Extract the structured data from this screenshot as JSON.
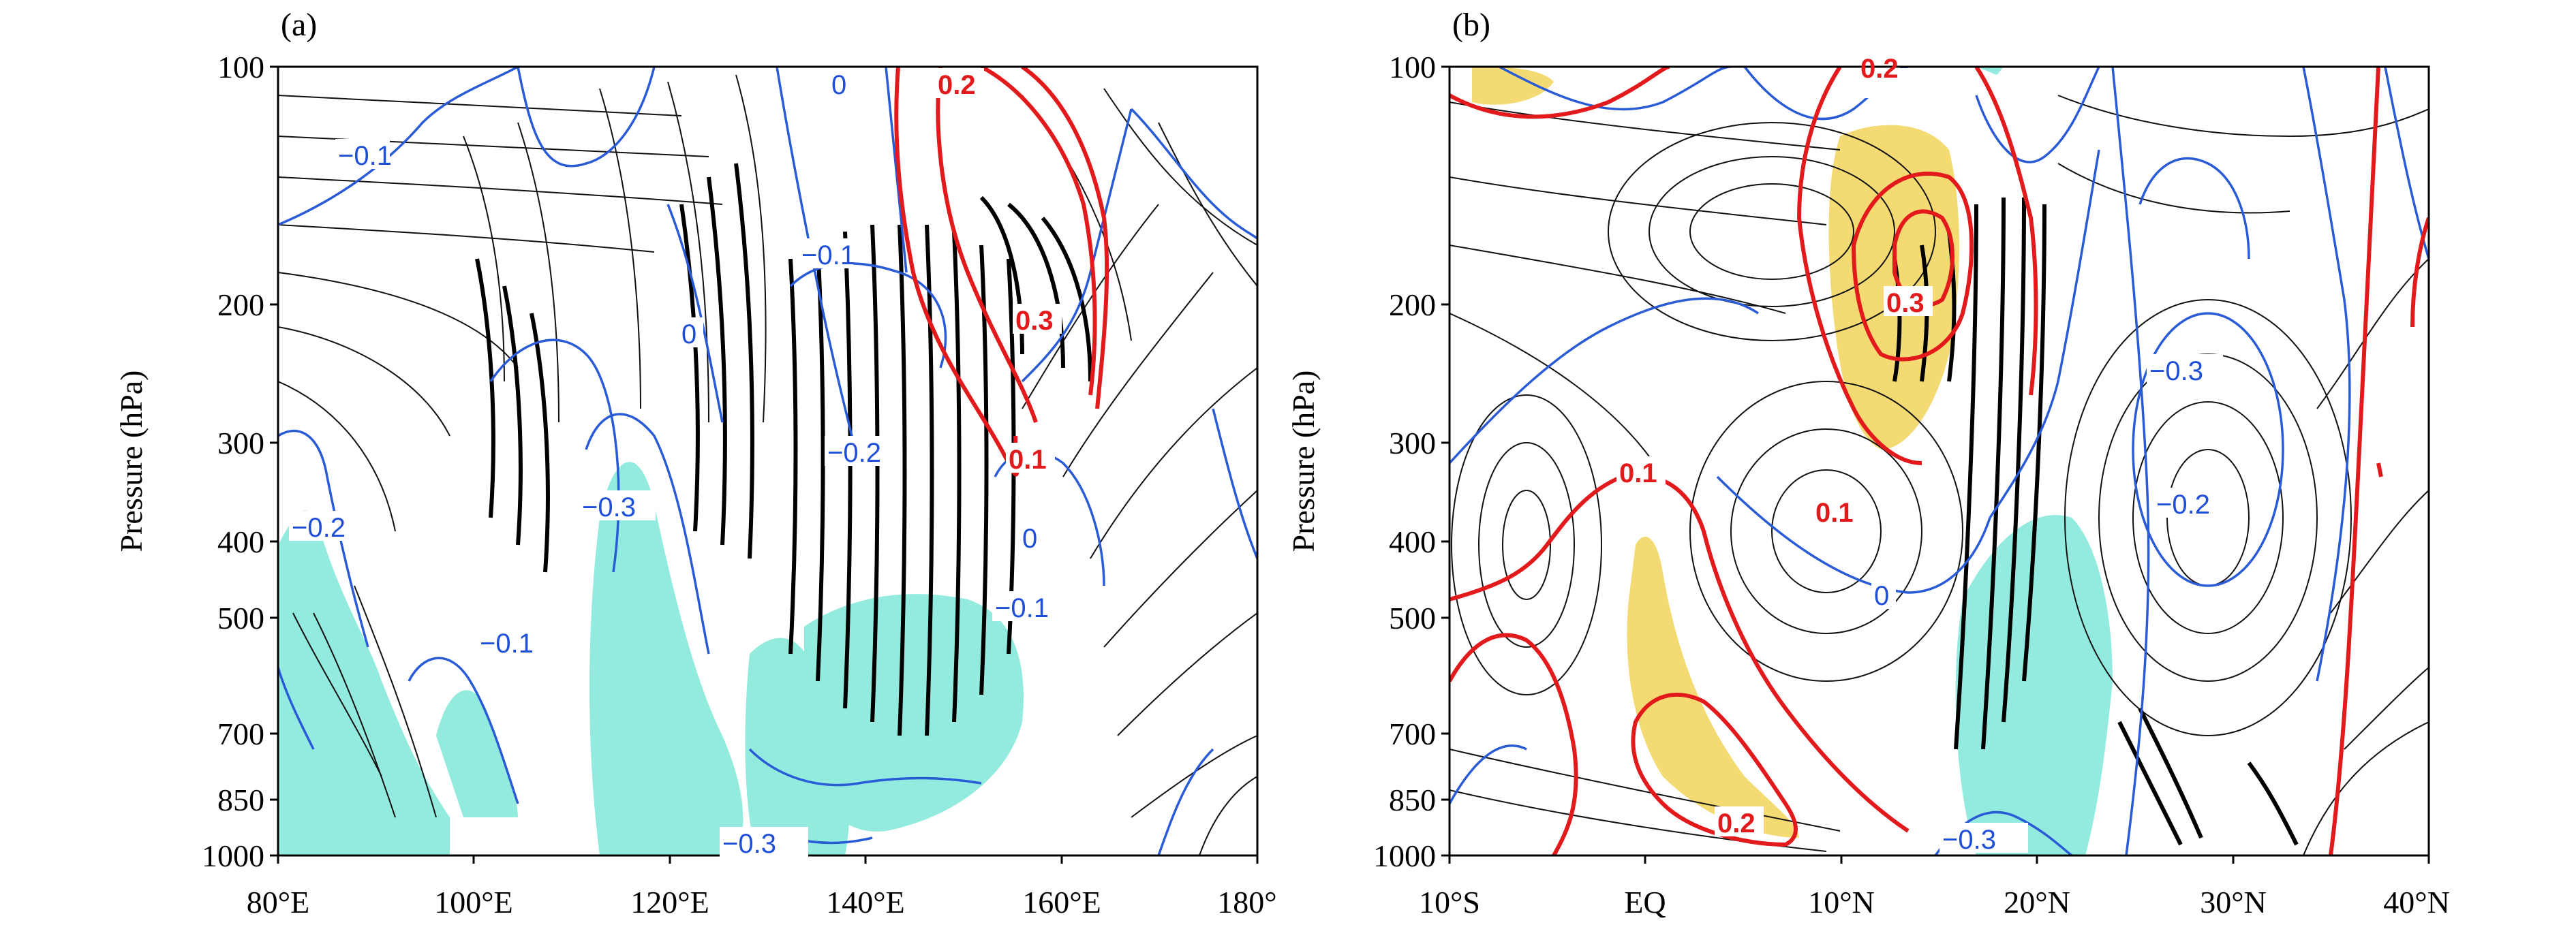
{
  "chart_data": [
    {
      "type": "contour",
      "panel_label": "(a)",
      "ylabel": "Pressure (hPa)",
      "x_ticks": [
        "80°E",
        "100°E",
        "120°E",
        "140°E",
        "160°E",
        "180°"
      ],
      "y_ticks": [
        "100",
        "200",
        "300",
        "400",
        "500",
        "700",
        "850",
        "1000"
      ],
      "y_scale": "log",
      "ylim": [
        1000,
        100
      ],
      "contour_labels": [
        {
          "text": "−0.1",
          "color": "blue"
        },
        {
          "text": "0",
          "color": "blue"
        },
        {
          "text": "0.2",
          "color": "red"
        },
        {
          "text": "−0.1",
          "color": "blue"
        },
        {
          "text": "0.3",
          "color": "red"
        },
        {
          "text": "0",
          "color": "blue"
        },
        {
          "text": "−0.2",
          "color": "blue"
        },
        {
          "text": "0.1",
          "color": "red"
        },
        {
          "text": "−0.2",
          "color": "blue"
        },
        {
          "text": "−0.3",
          "color": "blue"
        },
        {
          "text": "0",
          "color": "blue"
        },
        {
          "text": "−0.1",
          "color": "blue"
        },
        {
          "text": "−0.1",
          "color": "blue"
        },
        {
          "text": "−0.3",
          "color": "blue"
        }
      ],
      "shading": "cyan regions negative, yellow positive"
    },
    {
      "type": "contour",
      "panel_label": "(b)",
      "ylabel": "Pressure (hPa)",
      "x_ticks": [
        "10°S",
        "EQ",
        "10°N",
        "20°N",
        "30°N",
        "40°N"
      ],
      "y_ticks": [
        "100",
        "200",
        "300",
        "400",
        "500",
        "700",
        "850",
        "1000"
      ],
      "y_scale": "log",
      "ylim": [
        1000,
        100
      ],
      "contour_labels": [
        {
          "text": "0.2",
          "color": "red"
        },
        {
          "text": "0.3",
          "color": "red"
        },
        {
          "text": "−0.3",
          "color": "blue"
        },
        {
          "text": "0.1",
          "color": "red"
        },
        {
          "text": "0.1",
          "color": "red"
        },
        {
          "text": "−0.2",
          "color": "blue"
        },
        {
          "text": "0",
          "color": "blue"
        },
        {
          "text": "0.2",
          "color": "red"
        },
        {
          "text": "−0.3",
          "color": "blue"
        }
      ],
      "shading": "cyan regions negative, yellow positive"
    }
  ],
  "colors": {
    "negative_contour": "#2a5bd7",
    "positive_contour": "#e31a1c",
    "negative_shade": "#7fe8d8",
    "positive_shade": "#f2d35a",
    "streamline": "#111111"
  }
}
